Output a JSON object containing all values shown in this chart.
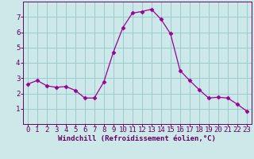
{
  "x": [
    0,
    1,
    2,
    3,
    4,
    5,
    6,
    7,
    8,
    9,
    10,
    11,
    12,
    13,
    14,
    15,
    16,
    17,
    18,
    19,
    20,
    21,
    22,
    23
  ],
  "y": [
    2.6,
    2.85,
    2.5,
    2.4,
    2.45,
    2.2,
    1.7,
    1.7,
    2.75,
    4.7,
    6.3,
    7.25,
    7.35,
    7.5,
    6.85,
    5.9,
    3.5,
    2.85,
    2.25,
    1.7,
    1.75,
    1.7,
    1.3,
    0.85
  ],
  "line_color": "#990099",
  "marker": "D",
  "marker_size": 2.5,
  "bg_color": "#cce8e8",
  "grid_color": "#99cccc",
  "xlabel": "Windchill (Refroidissement éolien,°C)",
  "xlim": [
    -0.5,
    23.5
  ],
  "ylim": [
    0,
    8
  ],
  "xticks": [
    0,
    1,
    2,
    3,
    4,
    5,
    6,
    7,
    8,
    9,
    10,
    11,
    12,
    13,
    14,
    15,
    16,
    17,
    18,
    19,
    20,
    21,
    22,
    23
  ],
  "yticks": [
    1,
    2,
    3,
    4,
    5,
    6,
    7
  ],
  "tick_color": "#660066",
  "label_color": "#660066",
  "font_size_xlabel": 6.5,
  "font_size_tick": 6.5,
  "spine_color": "#660066"
}
